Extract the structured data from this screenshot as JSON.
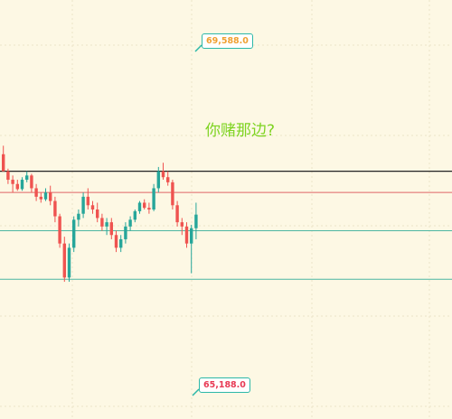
{
  "annotation_text": "你赌那边?",
  "colors": {
    "background": "#fdf8e4",
    "up": "#26a69a",
    "down": "#ef5350",
    "line_black": "#222222",
    "line_red": "#e06666",
    "line_teal": "#4db6a2",
    "grid": "#ece4c8",
    "question": "#7ed321"
  },
  "chart_data": {
    "type": "candlestick",
    "price_labels": {
      "high": "69,588.0",
      "low": "65,188.0"
    },
    "ylim": [
      65100,
      69900
    ],
    "horizontal_lines": [
      {
        "price": 67950,
        "color": "#222222"
      },
      {
        "price": 67700,
        "color": "#e06666"
      },
      {
        "price": 67250,
        "color": "#4db6a2"
      },
      {
        "price": 66680,
        "color": "#4db6a2"
      }
    ],
    "candles": [
      [
        68150,
        68250,
        67950,
        67950
      ],
      [
        67950,
        67980,
        67800,
        67850
      ],
      [
        67850,
        67900,
        67700,
        67800
      ],
      [
        67800,
        67850,
        67720,
        67740
      ],
      [
        67740,
        67880,
        67720,
        67850
      ],
      [
        67850,
        67950,
        67820,
        67900
      ],
      [
        67900,
        67920,
        67700,
        67750
      ],
      [
        67750,
        67800,
        67600,
        67650
      ],
      [
        67650,
        67700,
        67580,
        67620
      ],
      [
        67620,
        67750,
        67600,
        67700
      ],
      [
        67700,
        67780,
        67550,
        67600
      ],
      [
        67600,
        67650,
        67350,
        67420
      ],
      [
        67420,
        67450,
        67050,
        67100
      ],
      [
        67100,
        67180,
        66650,
        66700
      ],
      [
        66700,
        67100,
        66650,
        67050
      ],
      [
        67050,
        67420,
        67000,
        67380
      ],
      [
        67380,
        67500,
        67300,
        67450
      ],
      [
        67450,
        67700,
        67400,
        67650
      ],
      [
        67650,
        67750,
        67500,
        67550
      ],
      [
        67550,
        67600,
        67450,
        67500
      ],
      [
        67500,
        67580,
        67350,
        67400
      ],
      [
        67400,
        67450,
        67250,
        67300
      ],
      [
        67300,
        67400,
        67200,
        67350
      ],
      [
        67350,
        67400,
        67150,
        67200
      ],
      [
        67200,
        67250,
        67000,
        67050
      ],
      [
        67050,
        67200,
        67000,
        67150
      ],
      [
        67150,
        67350,
        67100,
        67300
      ],
      [
        67300,
        67420,
        67250,
        67380
      ],
      [
        67380,
        67500,
        67350,
        67480
      ],
      [
        67480,
        67600,
        67450,
        67580
      ],
      [
        67580,
        67620,
        67500,
        67520
      ],
      [
        67520,
        67580,
        67450,
        67500
      ],
      [
        67500,
        67800,
        67480,
        67750
      ],
      [
        67750,
        68000,
        67700,
        67950
      ],
      [
        67950,
        68050,
        67850,
        67880
      ],
      [
        67880,
        67950,
        67780,
        67820
      ],
      [
        67820,
        67850,
        67500,
        67550
      ],
      [
        67550,
        67600,
        67300,
        67350
      ],
      [
        67350,
        67400,
        67200,
        67300
      ],
      [
        67300,
        67350,
        67050,
        67100
      ],
      [
        67100,
        67320,
        66750,
        67280
      ],
      [
        67280,
        67580,
        67150,
        67440
      ]
    ]
  }
}
